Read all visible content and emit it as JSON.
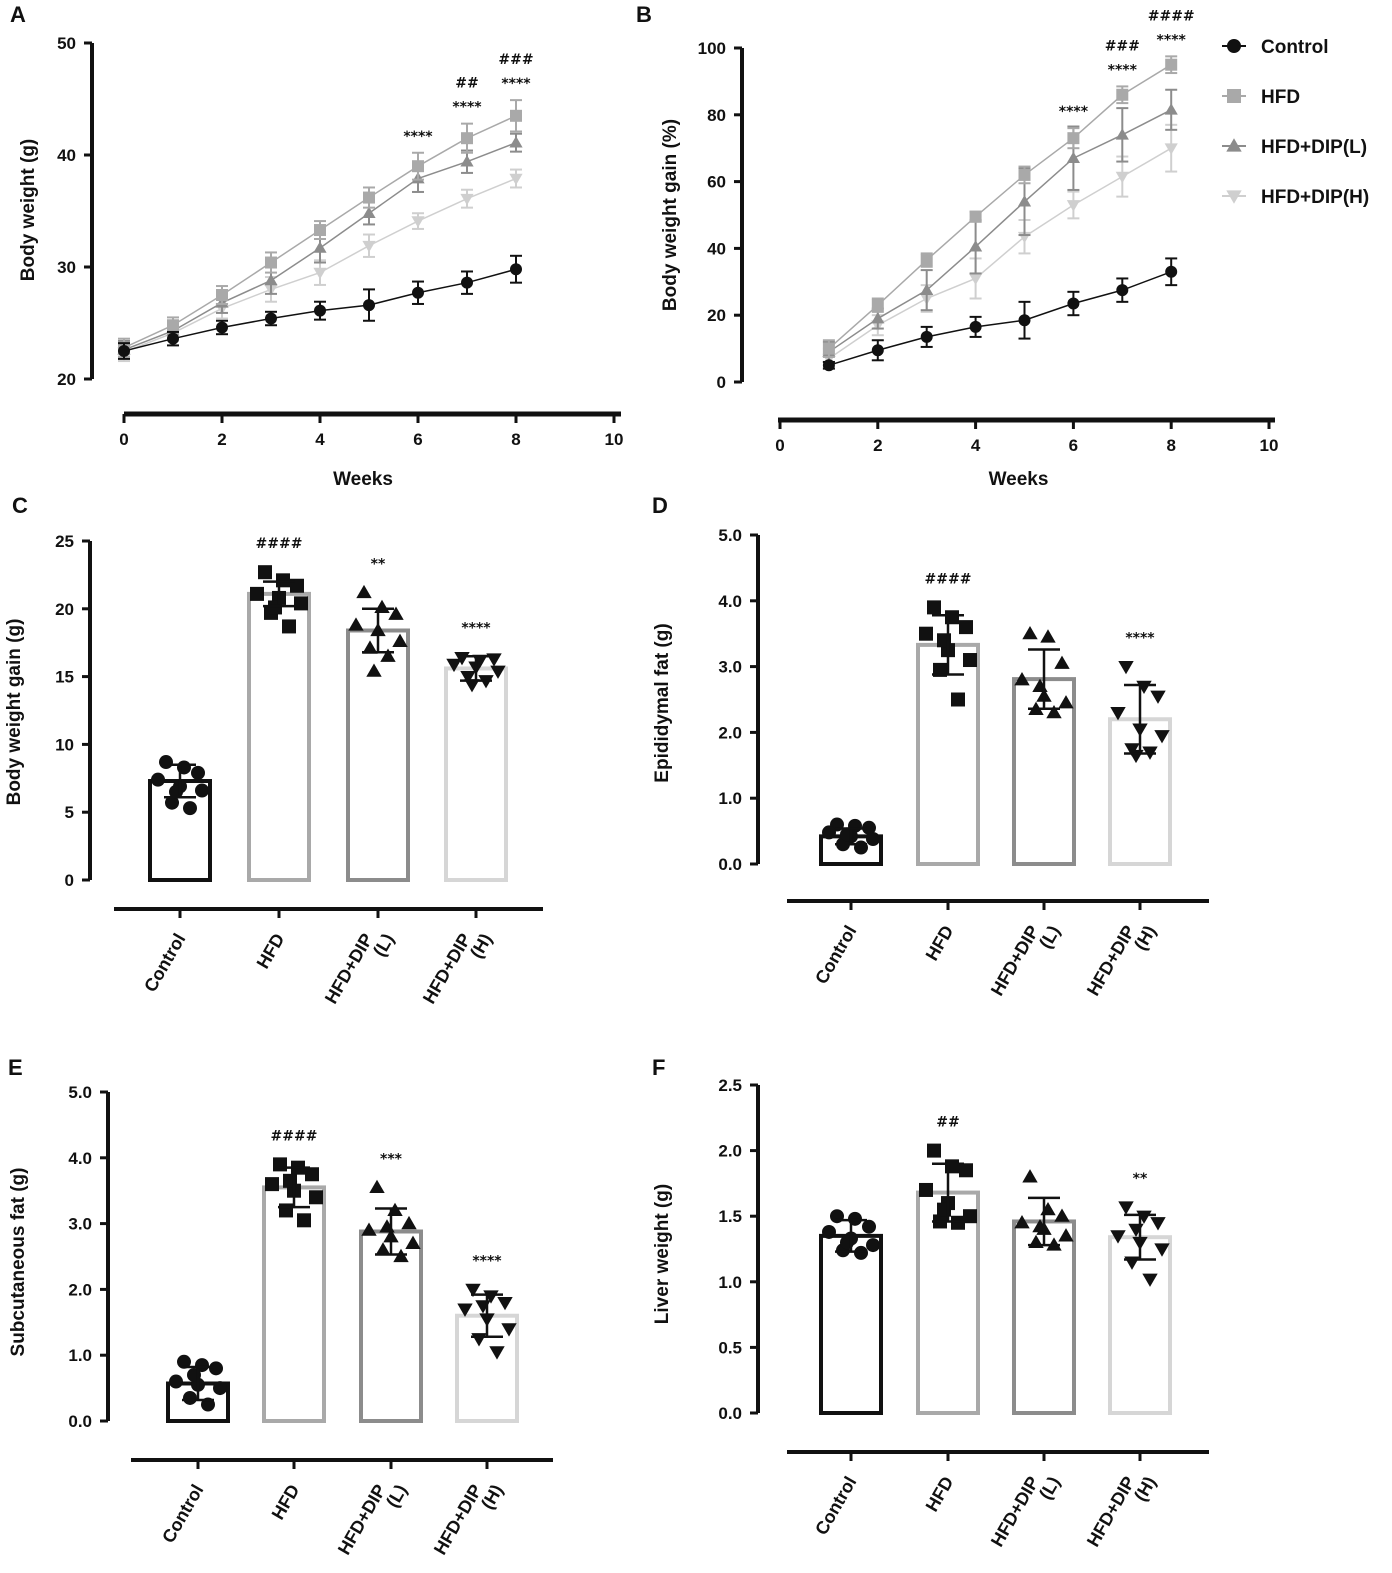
{
  "chart_data": [
    {
      "panel": "A",
      "type": "line",
      "xlabel": "Weeks",
      "ylabel": "Body weight (g)",
      "xlim": [
        0,
        10
      ],
      "ylim": [
        20,
        50
      ],
      "xticks": [
        "0",
        "2",
        "4",
        "6",
        "8",
        "10"
      ],
      "yticks": [
        "20",
        "30",
        "40",
        "50"
      ],
      "x": [
        0,
        1,
        2,
        3,
        4,
        5,
        6,
        7,
        8
      ],
      "series": [
        {
          "name": "Control",
          "color": "#111111",
          "marker": "circle",
          "values": [
            22.5,
            23.6,
            24.6,
            25.4,
            26.1,
            26.6,
            27.7,
            28.6,
            29.8
          ],
          "errors": [
            0.7,
            0.6,
            0.6,
            0.6,
            0.8,
            1.4,
            1.0,
            1.0,
            1.2
          ]
        },
        {
          "name": "HFD",
          "color": "#a9a9a9",
          "marker": "square",
          "values": [
            22.8,
            24.8,
            27.5,
            30.4,
            33.3,
            36.2,
            39.0,
            41.5,
            43.5
          ],
          "errors": [
            0.8,
            0.7,
            0.8,
            0.9,
            0.8,
            0.9,
            1.2,
            1.3,
            1.4
          ]
        },
        {
          "name": "HFD+DIP(L)",
          "color": "#8c8c8c",
          "marker": "triangle-up",
          "values": [
            22.6,
            24.3,
            26.8,
            28.8,
            31.7,
            34.8,
            37.9,
            39.4,
            41.1
          ],
          "errors": [
            0.8,
            0.7,
            0.9,
            1.2,
            1.3,
            1.0,
            1.2,
            1.0,
            0.8
          ]
        },
        {
          "name": "HFD+DIP(H)",
          "color": "#cfcfcf",
          "marker": "triangle-down",
          "values": [
            22.4,
            24.1,
            26.3,
            28.0,
            29.5,
            31.9,
            34.1,
            36.1,
            37.9
          ],
          "errors": [
            0.8,
            0.7,
            0.9,
            1.1,
            1.1,
            1.0,
            0.7,
            0.8,
            0.8
          ]
        }
      ],
      "annotations": [
        {
          "x": 6,
          "lines": [
            "****"
          ]
        },
        {
          "x": 7,
          "lines": [
            "##",
            "****"
          ]
        },
        {
          "x": 8,
          "lines": [
            "###",
            "****"
          ]
        }
      ]
    },
    {
      "panel": "B",
      "type": "line",
      "xlabel": "Weeks",
      "ylabel": "Body weight gain (%)",
      "xlim": [
        0,
        10
      ],
      "ylim": [
        0,
        100
      ],
      "xticks": [
        "0",
        "2",
        "4",
        "6",
        "8",
        "10"
      ],
      "yticks": [
        "0",
        "20",
        "40",
        "60",
        "80",
        "100"
      ],
      "x": [
        1,
        2,
        3,
        4,
        5,
        6,
        7,
        8
      ],
      "series": [
        {
          "name": "Control",
          "color": "#111111",
          "marker": "circle",
          "values": [
            5,
            9.5,
            13.5,
            16.5,
            18.5,
            23.5,
            27.5,
            33
          ],
          "errors": [
            1.0,
            3.0,
            3.0,
            3.0,
            5.5,
            3.5,
            3.5,
            4.0
          ]
        },
        {
          "name": "HFD",
          "color": "#a9a9a9",
          "marker": "square",
          "values": [
            10,
            23,
            36.5,
            49.5,
            62,
            73,
            86,
            95
          ],
          "errors": [
            2.5,
            2.0,
            2.0,
            1.5,
            2.5,
            3.0,
            2.5,
            2.5
          ]
        },
        {
          "name": "HFD+DIP(L)",
          "color": "#8c8c8c",
          "marker": "triangle-up",
          "values": [
            9,
            19,
            27.5,
            40.5,
            54,
            67,
            74,
            81.5
          ],
          "errors": [
            3.0,
            3.0,
            6.0,
            8.0,
            10.0,
            9.5,
            8.0,
            6.0
          ]
        },
        {
          "name": "HFD+DIP(H)",
          "color": "#cfcfcf",
          "marker": "triangle-down",
          "values": [
            7,
            17,
            25,
            31,
            43.5,
            53,
            61.5,
            70
          ],
          "errors": [
            3.0,
            3.0,
            4.0,
            6.0,
            5.0,
            4.0,
            6.0,
            7.0
          ]
        }
      ],
      "annotations": [
        {
          "x": 6,
          "lines": [
            "****"
          ]
        },
        {
          "x": 7,
          "lines": [
            "###",
            "****"
          ]
        },
        {
          "x": 8,
          "lines": [
            "####",
            "****"
          ]
        }
      ],
      "legend": [
        "Control",
        "HFD",
        "HFD+DIP(L)",
        "HFD+DIP(H)"
      ]
    },
    {
      "panel": "C",
      "type": "bar",
      "ylabel": "Body weight gain (g)",
      "ylim": [
        0,
        25
      ],
      "yticks": [
        "0",
        "5",
        "10",
        "15",
        "20",
        "25"
      ],
      "categories": [
        [
          "Control"
        ],
        [
          "HFD"
        ],
        [
          "HFD+DIP",
          "(L)"
        ],
        [
          "HFD+DIP",
          "(H)"
        ]
      ],
      "values": [
        7.3,
        21.1,
        18.4,
        15.6
      ],
      "errors": [
        1.2,
        0.9,
        1.6,
        0.9
      ],
      "bar_colors": [
        "#111111",
        "#a9a9a9",
        "#8c8c8c",
        "#d6d6d6"
      ],
      "markers": [
        "circle",
        "square",
        "triangle-up",
        "triangle-down"
      ],
      "points": [
        [
          8.7,
          8.3,
          7.9,
          7.4,
          6.9,
          6.6,
          5.7,
          5.3,
          6.5
        ],
        [
          22.7,
          22.1,
          21.7,
          21.1,
          20.8,
          20.4,
          19.7,
          18.7,
          20.1
        ],
        [
          21.2,
          20.1,
          19.6,
          18.8,
          18.4,
          17.6,
          17.1,
          16.5,
          15.4
        ],
        [
          16.4,
          16.2,
          16.3,
          15.9,
          15.7,
          15.4,
          15.0,
          14.7,
          14.4
        ]
      ],
      "annotations": [
        "",
        "####",
        "**",
        "****"
      ]
    },
    {
      "panel": "D",
      "type": "bar",
      "ylabel": "Epididymal fat (g)",
      "ylim": [
        0,
        5
      ],
      "yticks": [
        "0.0",
        "1.0",
        "2.0",
        "3.0",
        "4.0",
        "5.0"
      ],
      "categories": [
        [
          "Control"
        ],
        [
          "HFD"
        ],
        [
          "HFD+DIP",
          "(L)"
        ],
        [
          "HFD+DIP",
          "(H)"
        ]
      ],
      "values": [
        0.42,
        3.33,
        2.81,
        2.2
      ],
      "errors": [
        0.12,
        0.45,
        0.45,
        0.52
      ],
      "bar_colors": [
        "#111111",
        "#a9a9a9",
        "#8c8c8c",
        "#d6d6d6"
      ],
      "markers": [
        "circle",
        "square",
        "triangle-up",
        "triangle-down"
      ],
      "points": [
        [
          0.6,
          0.58,
          0.55,
          0.48,
          0.42,
          0.38,
          0.3,
          0.25,
          0.45
        ],
        [
          3.9,
          3.75,
          3.6,
          3.5,
          3.25,
          3.1,
          2.95,
          2.5,
          3.4
        ],
        [
          3.5,
          3.45,
          3.05,
          2.8,
          2.55,
          2.45,
          2.35,
          2.3,
          2.7
        ],
        [
          3.0,
          2.7,
          2.55,
          2.3,
          2.05,
          1.95,
          1.75,
          1.7,
          1.65
        ]
      ],
      "annotations": [
        "",
        "####",
        "",
        "****"
      ]
    },
    {
      "panel": "E",
      "type": "bar",
      "ylabel": "Subcutaneous fat (g)",
      "ylim": [
        0,
        5
      ],
      "yticks": [
        "0.0",
        "1.0",
        "2.0",
        "3.0",
        "4.0",
        "5.0"
      ],
      "categories": [
        [
          "Control"
        ],
        [
          "HFD"
        ],
        [
          "HFD+DIP",
          "(L)"
        ],
        [
          "HFD+DIP",
          "(H)"
        ]
      ],
      "values": [
        0.57,
        3.55,
        2.88,
        1.6
      ],
      "errors": [
        0.25,
        0.3,
        0.35,
        0.32
      ],
      "bar_colors": [
        "#111111",
        "#a9a9a9",
        "#8c8c8c",
        "#d6d6d6"
      ],
      "markers": [
        "circle",
        "square",
        "triangle-up",
        "triangle-down"
      ],
      "points": [
        [
          0.9,
          0.85,
          0.8,
          0.6,
          0.55,
          0.5,
          0.35,
          0.25,
          0.7
        ],
        [
          3.9,
          3.85,
          3.75,
          3.6,
          3.5,
          3.4,
          3.2,
          3.05,
          3.65
        ],
        [
          3.55,
          3.2,
          3.0,
          2.9,
          2.8,
          2.7,
          2.6,
          2.5,
          2.95
        ],
        [
          2.0,
          1.9,
          1.8,
          1.7,
          1.55,
          1.4,
          1.25,
          1.05,
          1.75
        ]
      ],
      "annotations": [
        "",
        "####",
        "***",
        "****"
      ]
    },
    {
      "panel": "F",
      "type": "bar",
      "ylabel": "Liver weight (g)",
      "ylim": [
        0,
        2.5
      ],
      "yticks": [
        "0.0",
        "0.5",
        "1.0",
        "1.5",
        "2.0",
        "2.5"
      ],
      "categories": [
        [
          "Control"
        ],
        [
          "HFD"
        ],
        [
          "HFD+DIP",
          "(L)"
        ],
        [
          "HFD+DIP",
          "(H)"
        ]
      ],
      "values": [
        1.35,
        1.68,
        1.46,
        1.34
      ],
      "errors": [
        0.12,
        0.22,
        0.18,
        0.17
      ],
      "bar_colors": [
        "#111111",
        "#a9a9a9",
        "#8c8c8c",
        "#d6d6d6"
      ],
      "markers": [
        "circle",
        "square",
        "triangle-up",
        "triangle-down"
      ],
      "points": [
        [
          1.5,
          1.48,
          1.42,
          1.38,
          1.33,
          1.28,
          1.24,
          1.22,
          1.3
        ],
        [
          2.0,
          1.88,
          1.85,
          1.7,
          1.6,
          1.5,
          1.46,
          1.45,
          1.55
        ],
        [
          1.8,
          1.55,
          1.5,
          1.45,
          1.4,
          1.35,
          1.3,
          1.28,
          1.42
        ],
        [
          1.57,
          1.5,
          1.45,
          1.35,
          1.3,
          1.25,
          1.15,
          1.02,
          1.4
        ]
      ],
      "annotations": [
        "",
        "##",
        "",
        "**"
      ]
    }
  ]
}
